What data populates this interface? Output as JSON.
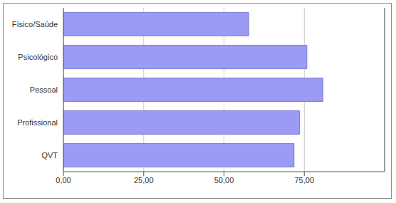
{
  "chart_data": {
    "type": "bar",
    "orientation": "horizontal",
    "categories": [
      "Físico/Saúde",
      "Psicológico",
      "Pessoal",
      "Profissional",
      "QVT"
    ],
    "values": [
      57.7,
      75.8,
      80.8,
      73.5,
      71.8
    ],
    "color": "#9b9bf5",
    "xlim": [
      0,
      100
    ],
    "xticks": [
      {
        "value": 0,
        "label": "0,00"
      },
      {
        "value": 25,
        "label": "25,00"
      },
      {
        "value": 50,
        "label": "50,00"
      },
      {
        "value": 75,
        "label": "75,00"
      }
    ],
    "grid": true
  }
}
